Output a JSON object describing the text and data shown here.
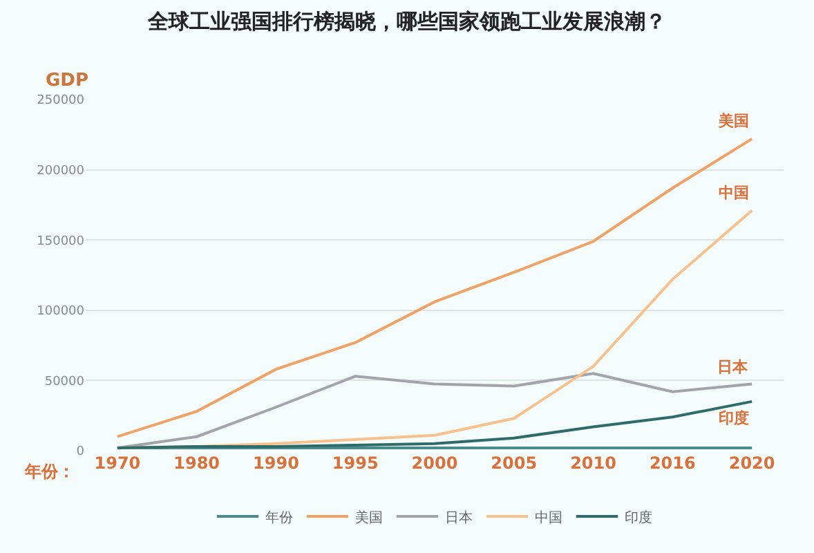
{
  "chart_data": {
    "type": "line",
    "title": "全球工业强国排行榜揭晓，哪些国家领跑工业发展浪潮？",
    "ylabel": "GDP",
    "xlabel": "年份：",
    "categories": [
      "1970",
      "1980",
      "1990",
      "1995",
      "2000",
      "2005",
      "2010",
      "2016",
      "2020"
    ],
    "series": [
      {
        "name": "年份",
        "color": "#4a8a8a",
        "values": [
          1970,
          1980,
          1990,
          1995,
          2000,
          2005,
          2010,
          2016,
          2020
        ]
      },
      {
        "name": "美国",
        "color": "#f0a266",
        "values": [
          10000,
          28000,
          58000,
          77000,
          106000,
          127000,
          149000,
          187000,
          222000
        ]
      },
      {
        "name": "日本",
        "color": "#a3a3ab",
        "values": [
          2000,
          10000,
          31000,
          53000,
          47500,
          46000,
          55000,
          42000,
          47500
        ]
      },
      {
        "name": "中国",
        "color": "#f6c18c",
        "values": [
          2000,
          3000,
          5000,
          8000,
          11000,
          23000,
          60000,
          122000,
          171000
        ]
      },
      {
        "name": "印度",
        "color": "#2f6b6b",
        "values": [
          2000,
          3000,
          3000,
          4000,
          5000,
          9000,
          17000,
          24000,
          35000
        ]
      }
    ],
    "annotations": [
      {
        "text": "美国",
        "x": "2020",
        "y": 222000
      },
      {
        "text": "中国",
        "x": "2020",
        "y": 171000
      },
      {
        "text": "日本",
        "x": "2020",
        "y": 47500
      },
      {
        "text": "印度",
        "x": "2020",
        "y": 35000
      }
    ],
    "ylim": [
      0,
      250000
    ],
    "yticks": [
      0,
      50000,
      100000,
      150000,
      200000,
      250000
    ],
    "grid": "y",
    "legend": "bottom",
    "marker": "none",
    "line_style": "solid"
  }
}
